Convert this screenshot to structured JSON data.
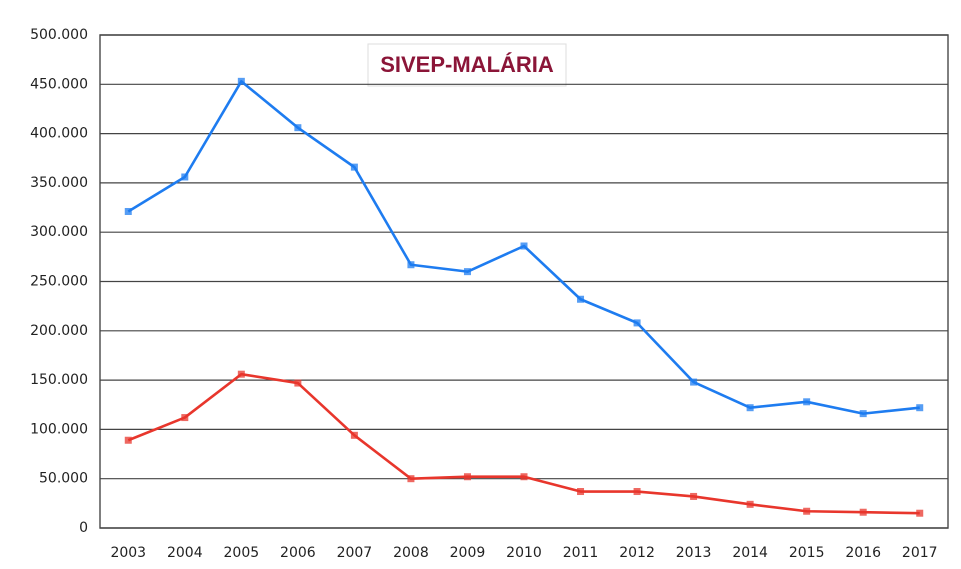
{
  "chart_data": {
    "type": "line",
    "title": "SIVEP-MALÁRIA",
    "categories": [
      "2003",
      "2004",
      "2005",
      "2006",
      "2007",
      "2008",
      "2009",
      "2010",
      "2011",
      "2012",
      "2013",
      "2014",
      "2015",
      "2016",
      "2017"
    ],
    "series": [
      {
        "color": "#1e7cf0",
        "values": [
          321000,
          356000,
          453000,
          406000,
          366000,
          267000,
          260000,
          286000,
          232000,
          208000,
          148000,
          122000,
          128000,
          116000,
          122000
        ]
      },
      {
        "color": "#e8362c",
        "values": [
          89000,
          112000,
          156000,
          147000,
          94000,
          50000,
          52000,
          52000,
          37000,
          37000,
          32000,
          24000,
          17000,
          16000,
          15000
        ]
      }
    ],
    "ylim": [
      0,
      500000
    ],
    "yticks": [
      0,
      {
        "value": 50000,
        "label": "50.000"
      },
      {
        "value": 100000,
        "label": "100.000"
      },
      {
        "value": 150000,
        "label": "150.000"
      },
      {
        "value": 200000,
        "label": "200.000"
      },
      {
        "value": 250000,
        "label": "250.000"
      },
      {
        "value": 300000,
        "label": "300.000"
      },
      {
        "value": 350000,
        "label": "350.000"
      },
      {
        "value": 400000,
        "label": "400.000"
      },
      {
        "value": 450000,
        "label": "450.000"
      },
      {
        "value": 500000,
        "label": "500.000"
      }
    ],
    "grid": true
  }
}
